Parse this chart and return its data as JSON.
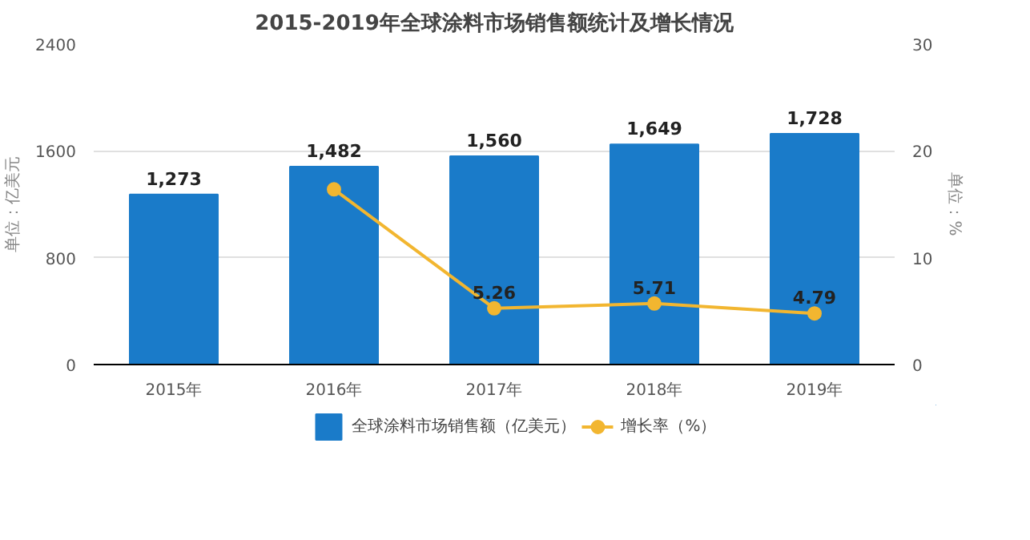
{
  "chart_data": {
    "type": "bar",
    "title": "2015-2019年全球涂料市场销售额统计及增长情况",
    "ylabel": "单位：亿美元",
    "y2label": "单位：%",
    "categories": [
      "2015年",
      "2016年",
      "2017年",
      "2018年",
      "2019年"
    ],
    "series": [
      {
        "name": "全球涂料市场销售额（亿美元）",
        "color": "#1a7bc9",
        "values": [
          1273,
          1482,
          1560,
          1649,
          1728
        ],
        "value_labels": [
          "1,273",
          "1,482",
          "1,560",
          "1,649",
          "1,728"
        ]
      },
      {
        "name": "增长率（%）",
        "type": "line",
        "axis": "y2",
        "color": "#f2b630",
        "marker": "circle",
        "values": [
          null,
          16.4,
          5.26,
          5.71,
          4.79
        ],
        "value_labels": [
          null,
          null,
          "5.26",
          "5.71",
          "4.79"
        ]
      }
    ],
    "ylim": [
      0,
      2400
    ],
    "yticks": [
      0,
      800,
      1600,
      2400
    ],
    "y2lim": [
      0,
      30
    ],
    "y2ticks": [
      0,
      10,
      20,
      30
    ],
    "grid": "y",
    "legend": "bottom"
  }
}
